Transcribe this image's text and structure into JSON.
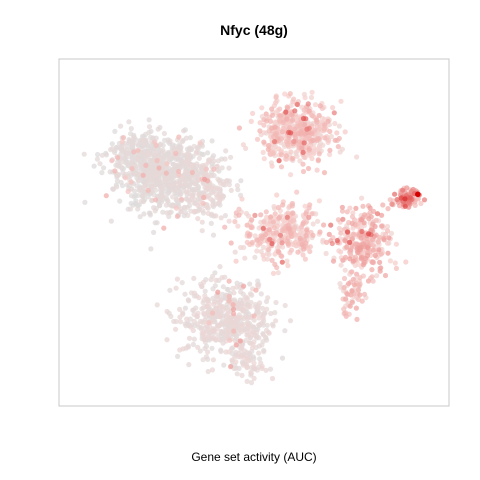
{
  "chart_data": {
    "type": "scatter",
    "title": "Nfyc (48g)",
    "xlabel": "",
    "ylabel": "",
    "caption": "Gene set activity (AUC)",
    "axes_visible": false,
    "grid": false,
    "legend": "none",
    "colors": {
      "low": "#dcdcdc",
      "mid": "#f6d2cf",
      "high": "#d40000",
      "frame": "#c8c8c8"
    },
    "xlim": [
      0,
      100
    ],
    "ylim": [
      0,
      100
    ],
    "clusters": [
      {
        "cx": 27,
        "cy": 67,
        "sx": 10,
        "sy": 9,
        "n": 700,
        "auc": [
          0.02,
          0.12
        ]
      },
      {
        "cx": 20,
        "cy": 72,
        "sx": 6,
        "sy": 6,
        "n": 180,
        "auc": [
          0.02,
          0.1
        ]
      },
      {
        "cx": 38,
        "cy": 62,
        "sx": 5,
        "sy": 8,
        "n": 160,
        "auc": [
          0.05,
          0.18
        ]
      },
      {
        "cx": 43,
        "cy": 25,
        "sx": 10,
        "sy": 9,
        "n": 520,
        "auc": [
          0.04,
          0.18
        ]
      },
      {
        "cx": 49,
        "cy": 12,
        "sx": 4,
        "sy": 4,
        "n": 60,
        "auc": [
          0.05,
          0.2
        ]
      },
      {
        "cx": 61,
        "cy": 79,
        "sx": 8,
        "sy": 7,
        "n": 480,
        "auc": [
          0.2,
          0.42
        ]
      },
      {
        "cx": 57,
        "cy": 50,
        "sx": 8,
        "sy": 7,
        "n": 320,
        "auc": [
          0.2,
          0.42
        ]
      },
      {
        "cx": 78,
        "cy": 48,
        "sx": 6,
        "sy": 8,
        "n": 280,
        "auc": [
          0.22,
          0.48
        ]
      },
      {
        "cx": 75,
        "cy": 32,
        "sx": 3,
        "sy": 5,
        "n": 60,
        "auc": [
          0.2,
          0.45
        ]
      },
      {
        "cx": 89,
        "cy": 60,
        "sx": 3,
        "sy": 2.3,
        "n": 90,
        "auc": [
          0.3,
          0.65
        ]
      }
    ],
    "max_point": {
      "x": 92,
      "y": 61,
      "auc": 1.0
    }
  }
}
